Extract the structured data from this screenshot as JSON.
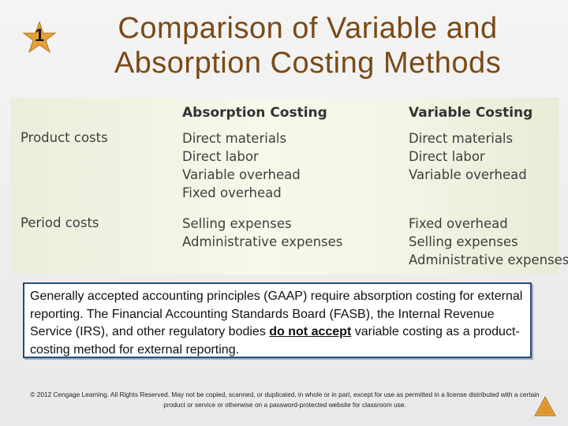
{
  "slide": {
    "number": "1",
    "title_line1": "Comparison of Variable and",
    "title_line2": "Absorption Costing Methods",
    "colors": {
      "title": "#7a4a17",
      "badge_fill": "#e8a13a",
      "note_border": "#2b4a7a"
    }
  },
  "table": {
    "col_absorption": "Absorption Costing",
    "col_variable": "Variable Costing",
    "rows": [
      {
        "label": "Product costs",
        "absorption": [
          "Direct materials",
          "Direct labor",
          "Variable overhead",
          "Fixed overhead"
        ],
        "variable": [
          "Direct materials",
          "Direct labor",
          "Variable overhead"
        ]
      },
      {
        "label": "Period costs",
        "absorption": [
          "Selling expenses",
          "Administrative expenses"
        ],
        "variable": [
          "Fixed overhead",
          "Selling expenses",
          "Administrative expenses"
        ]
      }
    ]
  },
  "note": {
    "text_before": "Generally accepted accounting principles (GAAP) require absorption costing for external reporting. The Financial Accounting Standards Board (FASB), the Internal Revenue Service (IRS), and other regulatory bodies ",
    "emphasis": "do not accept",
    "text_after": " variable costing as a product-costing method for external reporting."
  },
  "footer": {
    "copyright": "© 2012 Cengage Learning. All Rights Reserved. May not be copied, scanned, or duplicated, in whole or in part, except for use as permitted in a license distributed with a certain product or service or otherwise on a password-protected website for classroom use."
  }
}
